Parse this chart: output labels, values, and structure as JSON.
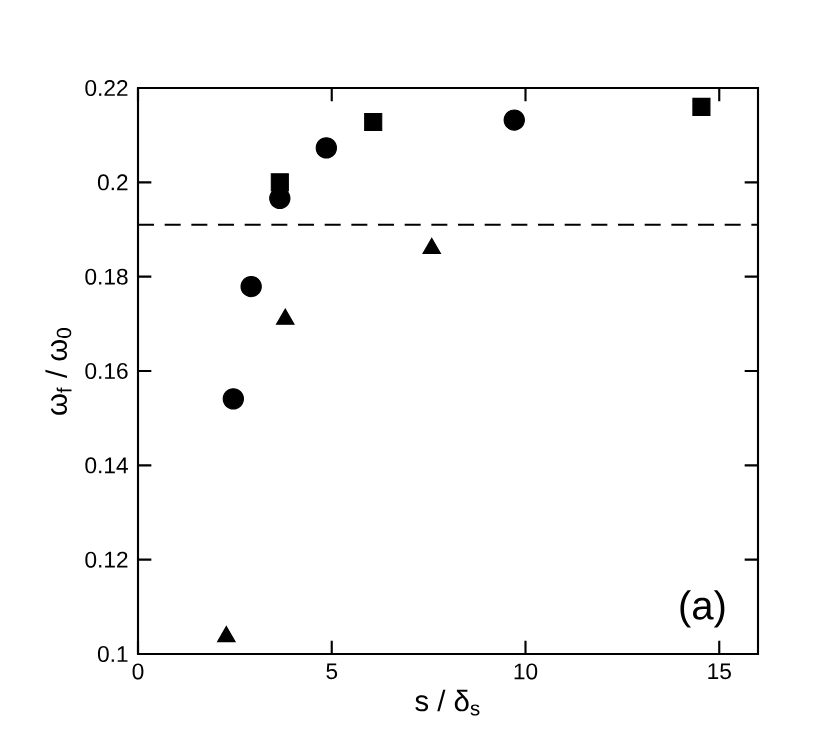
{
  "chart_data": {
    "type": "scatter",
    "xlabel": "s / δ$_{s}$",
    "ylabel": "ω$_{f}$ / ω$_{0}$",
    "annotations": [
      "(a)"
    ],
    "series": [
      {
        "color": "#000000",
        "marker": "square",
        "x": [
          3.66,
          6.07,
          14.54
        ],
        "values": [
          0.2,
          0.2128,
          0.216
        ]
      },
      {
        "color": "#000000",
        "marker": "circle",
        "x": [
          2.46,
          2.92,
          3.66,
          4.86,
          9.71
        ],
        "values": [
          0.1541,
          0.1779,
          0.1966,
          0.2073,
          0.2132
        ]
      },
      {
        "color": "#000000",
        "marker": "triangle",
        "x": [
          2.28,
          3.8,
          7.58
        ],
        "values": [
          0.1037,
          0.171,
          0.186
        ]
      }
    ],
    "ref_lines": [
      {
        "axis": "y",
        "value": 0.191,
        "line_style": "dashed",
        "color": "#000000"
      }
    ],
    "xlim": [
      0,
      16
    ],
    "ylim": [
      0.1,
      0.22
    ],
    "xticks": [
      0,
      5,
      10,
      15
    ],
    "yticks": [
      0.1,
      0.12,
      0.14,
      0.16,
      0.18,
      0.2,
      0.22
    ],
    "grid": false
  }
}
